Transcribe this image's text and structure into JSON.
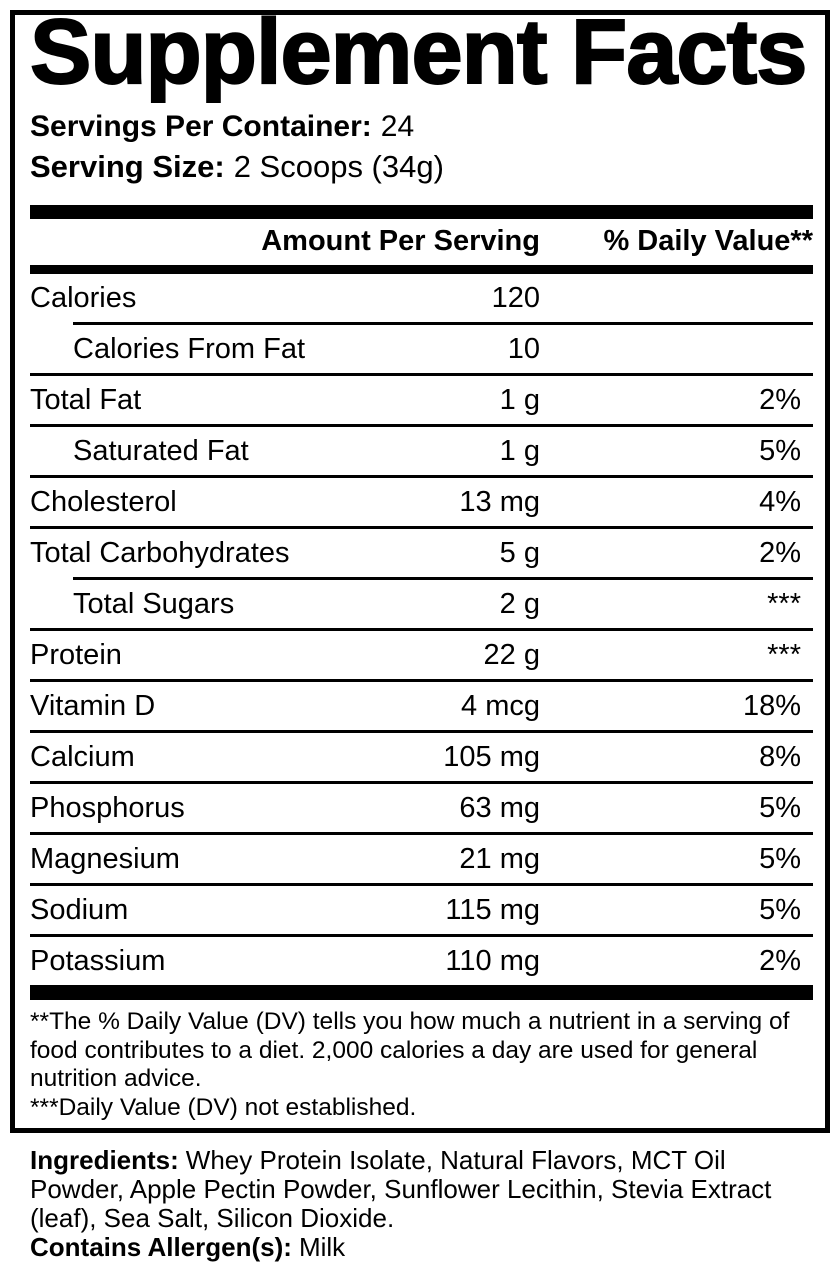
{
  "title": "Supplement Facts",
  "servings": {
    "label": "Servings Per Container:",
    "value": "24"
  },
  "serving_size": {
    "label": "Serving Size:",
    "value": "2 Scoops (34g)"
  },
  "table": {
    "headers": {
      "amount": "Amount Per Serving",
      "daily_value": "% Daily Value**"
    },
    "rows": [
      {
        "label": "Calories",
        "amount": "120",
        "dv": "",
        "indent": false,
        "divider": "none"
      },
      {
        "label": "Calories From Fat",
        "amount": "10",
        "dv": "",
        "indent": true,
        "divider": "indented"
      },
      {
        "label": "Total Fat",
        "amount": "1 g",
        "dv": "2%",
        "indent": false,
        "divider": "full"
      },
      {
        "label": "Saturated Fat",
        "amount": "1 g",
        "dv": "5%",
        "indent": true,
        "divider": "full"
      },
      {
        "label": "Cholesterol",
        "amount": "13 mg",
        "dv": "4%",
        "indent": false,
        "divider": "full"
      },
      {
        "label": "Total Carbohydrates",
        "amount": "5 g",
        "dv": "2%",
        "indent": false,
        "divider": "full"
      },
      {
        "label": "Total Sugars",
        "amount": "2 g",
        "dv": "***",
        "indent": true,
        "divider": "indented"
      },
      {
        "label": "Protein",
        "amount": "22 g",
        "dv": "***",
        "indent": false,
        "divider": "full"
      },
      {
        "label": "Vitamin D",
        "amount": "4 mcg",
        "dv": "18%",
        "indent": false,
        "divider": "full"
      },
      {
        "label": "Calcium",
        "amount": "105 mg",
        "dv": "8%",
        "indent": false,
        "divider": "full"
      },
      {
        "label": "Phosphorus",
        "amount": "63 mg",
        "dv": "5%",
        "indent": false,
        "divider": "full"
      },
      {
        "label": "Magnesium",
        "amount": "21 mg",
        "dv": "5%",
        "indent": false,
        "divider": "full"
      },
      {
        "label": "Sodium",
        "amount": "115 mg",
        "dv": "5%",
        "indent": false,
        "divider": "full"
      },
      {
        "label": "Potassium",
        "amount": "110 mg",
        "dv": "2%",
        "indent": false,
        "divider": "full"
      }
    ]
  },
  "footnotes": {
    "daily_value_note": "**The % Daily Value (DV) tells you how much a nutrient in a serving of food contributes to a diet. 2,000 calories a day are used for general nutrition advice.",
    "not_established_note": "***Daily Value (DV) not established."
  },
  "ingredients": {
    "label": "Ingredients:",
    "value": "Whey Protein Isolate, Natural Flavors, MCT Oil Powder, Apple Pectin Powder, Sunflower Lecithin, Stevia Extract (leaf), Sea Salt, Silicon Dioxide."
  },
  "allergens": {
    "label": "Contains Allergen(s):",
    "value": "Milk"
  },
  "colors": {
    "text": "#000000",
    "background": "#ffffff"
  }
}
